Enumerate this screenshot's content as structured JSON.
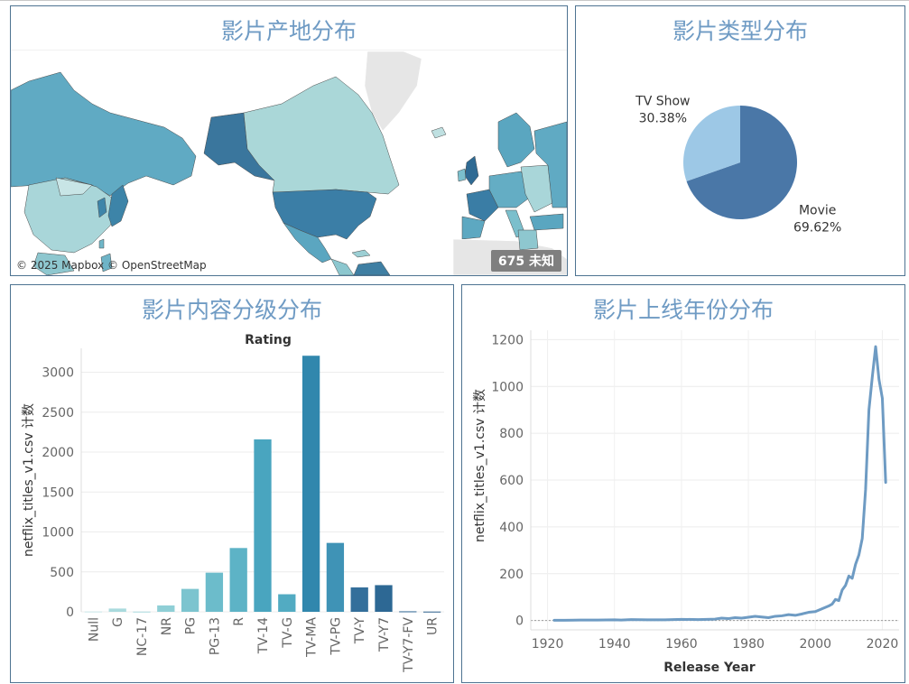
{
  "panels": {
    "map": {
      "title": "影片产地分布",
      "attribution": "© 2025 Mapbox © OpenStreetMap",
      "unknown_count": "675",
      "unknown_label": "未知"
    },
    "pie": {
      "title": "影片类型分布"
    },
    "bar": {
      "title": "影片内容分级分布"
    },
    "line": {
      "title": "影片上线年份分布"
    }
  },
  "colors": {
    "title": "#6f9bc4",
    "border": "#4e7391",
    "map_ocean": "#ffffff",
    "pie_movie": "#4a77a7",
    "pie_tv": "#9dc8e6",
    "line": "#6e9bc3"
  },
  "chart_data": [
    {
      "type": "pie",
      "series": [
        {
          "name": "Movie",
          "value": 69.62,
          "label": "69.62%"
        },
        {
          "name": "TV Show",
          "value": 30.38,
          "label": "30.38%"
        }
      ]
    },
    {
      "type": "bar",
      "title": "Rating",
      "ylabel": "netflix_titles_v1.csv 计数",
      "xlabel": "",
      "ylim": [
        0,
        3300
      ],
      "yticks": [
        0,
        500,
        1000,
        1500,
        2000,
        2500,
        3000
      ],
      "categories": [
        "Null",
        "G",
        "NC-17",
        "NR",
        "PG",
        "PG-13",
        "R",
        "TV-14",
        "TV-G",
        "TV-MA",
        "TV-PG",
        "TV-Y",
        "TV-Y7",
        "TV-Y7-FV",
        "UR"
      ],
      "values": [
        4,
        41,
        3,
        80,
        287,
        490,
        799,
        2160,
        220,
        3207,
        863,
        306,
        334,
        6,
        3
      ],
      "colors": [
        "#c9e6e8",
        "#a9dadd",
        "#a9dadd",
        "#8fcfd6",
        "#7cc4cf",
        "#6cbccb",
        "#5db3c6",
        "#49a5bf",
        "#52abc2",
        "#3187ad",
        "#3f93b6",
        "#346f9b",
        "#2d6894",
        "#2c6290",
        "#2c5f8c"
      ]
    },
    {
      "type": "line",
      "xlabel": "Release Year",
      "ylabel": "netflix_titles_v1.csv 计数",
      "xlim": [
        1915,
        2025
      ],
      "ylim": [
        -40,
        1240
      ],
      "xticks": [
        1920,
        1940,
        1960,
        1980,
        2000,
        2020
      ],
      "yticks": [
        0,
        200,
        400,
        600,
        800,
        1000,
        1200
      ],
      "x": [
        1922,
        1925,
        1930,
        1935,
        1940,
        1942,
        1945,
        1950,
        1955,
        1960,
        1965,
        1970,
        1972,
        1974,
        1976,
        1978,
        1980,
        1982,
        1984,
        1986,
        1988,
        1990,
        1992,
        1994,
        1996,
        1998,
        2000,
        2002,
        2004,
        2005,
        2006,
        2007,
        2008,
        2009,
        2010,
        2011,
        2012,
        2013,
        2014,
        2015,
        2016,
        2017,
        2018,
        2019,
        2020,
        2021
      ],
      "y": [
        1,
        1,
        2,
        2,
        3,
        2,
        4,
        3,
        3,
        5,
        4,
        6,
        10,
        8,
        12,
        10,
        14,
        18,
        15,
        12,
        18,
        20,
        25,
        22,
        28,
        35,
        38,
        50,
        62,
        70,
        90,
        85,
        130,
        150,
        190,
        180,
        240,
        280,
        350,
        560,
        900,
        1040,
        1170,
        1030,
        950,
        590
      ]
    }
  ]
}
